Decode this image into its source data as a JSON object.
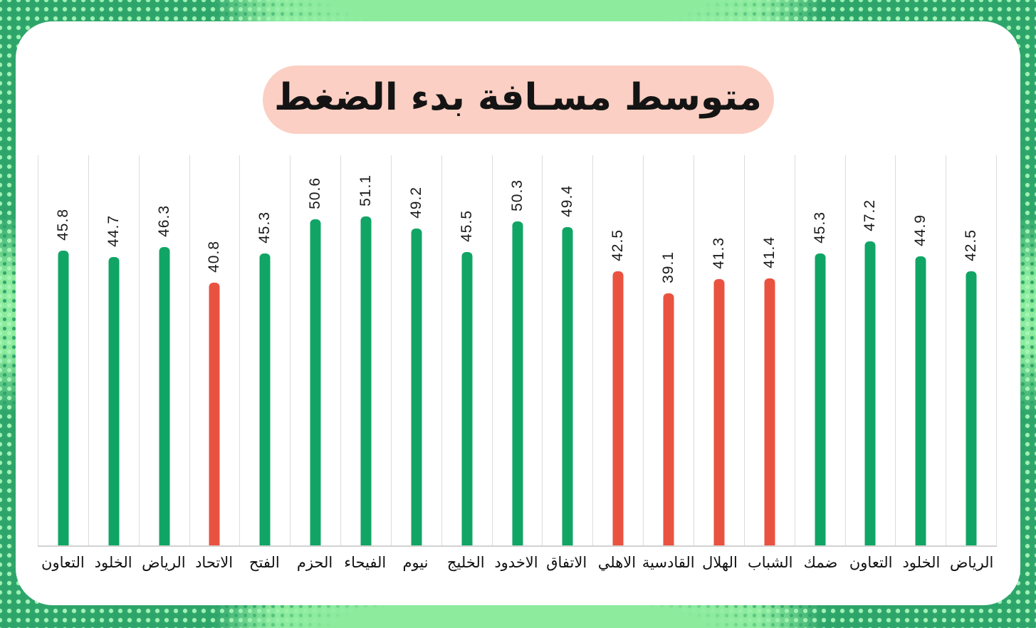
{
  "title": {
    "text": "متوسط مسـافة بدء الضغط"
  },
  "colors": {
    "bar_green": "#10a565",
    "bar_red": "#ea5240",
    "title_bg": "#fbcfc3",
    "card_bg": "#ffffff",
    "frame_green_light": "#8deb9e",
    "frame_green_dark": "#2ea56b",
    "gridline": "#dcdcdc",
    "text": "#141414"
  },
  "chart_data": {
    "type": "bar",
    "title": "متوسط مسـافة بدء الضغط",
    "xlabel": "",
    "ylabel": "",
    "ylim": [
      0,
      61
    ],
    "legend": "none",
    "grid": "vertical category separators, baseline only",
    "value_labels": "rotated 90° counterclockwise above each bar",
    "categories": [
      "التعاون",
      "الخلود",
      "الرياض",
      "الاتحاد",
      "الفتح",
      "الحزم",
      "الفيحاء",
      "نيوم",
      "الخليج",
      "الاخدود",
      "الاتفاق",
      "الاهلي",
      "القادسية",
      "الهلال",
      "الشباب",
      "ضمك",
      "التعاون",
      "الخلود",
      "الرياض"
    ],
    "values": [
      45.8,
      44.7,
      46.3,
      40.8,
      45.3,
      50.6,
      51.1,
      49.2,
      45.5,
      50.3,
      49.4,
      42.5,
      39.1,
      41.3,
      41.4,
      45.3,
      47.2,
      44.9,
      42.5
    ],
    "colors": [
      "green",
      "green",
      "green",
      "red",
      "green",
      "green",
      "green",
      "green",
      "green",
      "green",
      "green",
      "red",
      "red",
      "red",
      "red",
      "green",
      "green",
      "green",
      "green"
    ]
  }
}
